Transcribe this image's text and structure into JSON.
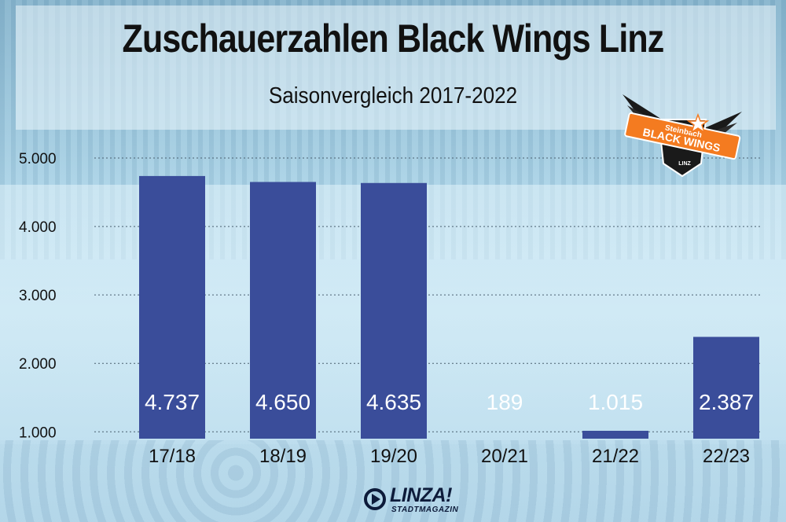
{
  "chart_data": {
    "type": "bar",
    "title": "Zuschauerzahlen Black Wings Linz",
    "subtitle": "Saisonvergleich 2017-2022",
    "categories": [
      "17/18",
      "18/19",
      "19/20",
      "20/21",
      "21/22",
      "22/23"
    ],
    "values": [
      4737,
      4650,
      4635,
      189,
      1015,
      2387
    ],
    "value_labels": [
      "4.737",
      "4.650",
      "4.635",
      "189",
      "1.015",
      "2.387"
    ],
    "y_ticks": [
      1000,
      2000,
      3000,
      4000,
      5000
    ],
    "y_tick_labels": [
      "1.000",
      "2.000",
      "3.000",
      "4.000",
      "5.000"
    ],
    "ylim": [
      900,
      5000
    ],
    "grid": true,
    "legend": "none",
    "bar_color": "#3a4d9a",
    "label_color": "#ffffff"
  },
  "logo": {
    "line1": "Steinbach",
    "line2": "BLACK WINGS",
    "line3": "LINZ",
    "accent": "#f47b20",
    "dark": "#1a1a1a"
  },
  "brand": {
    "name": "LINZA!",
    "tagline": "STADTMAGAZIN",
    "icon": "play-circle-icon"
  }
}
